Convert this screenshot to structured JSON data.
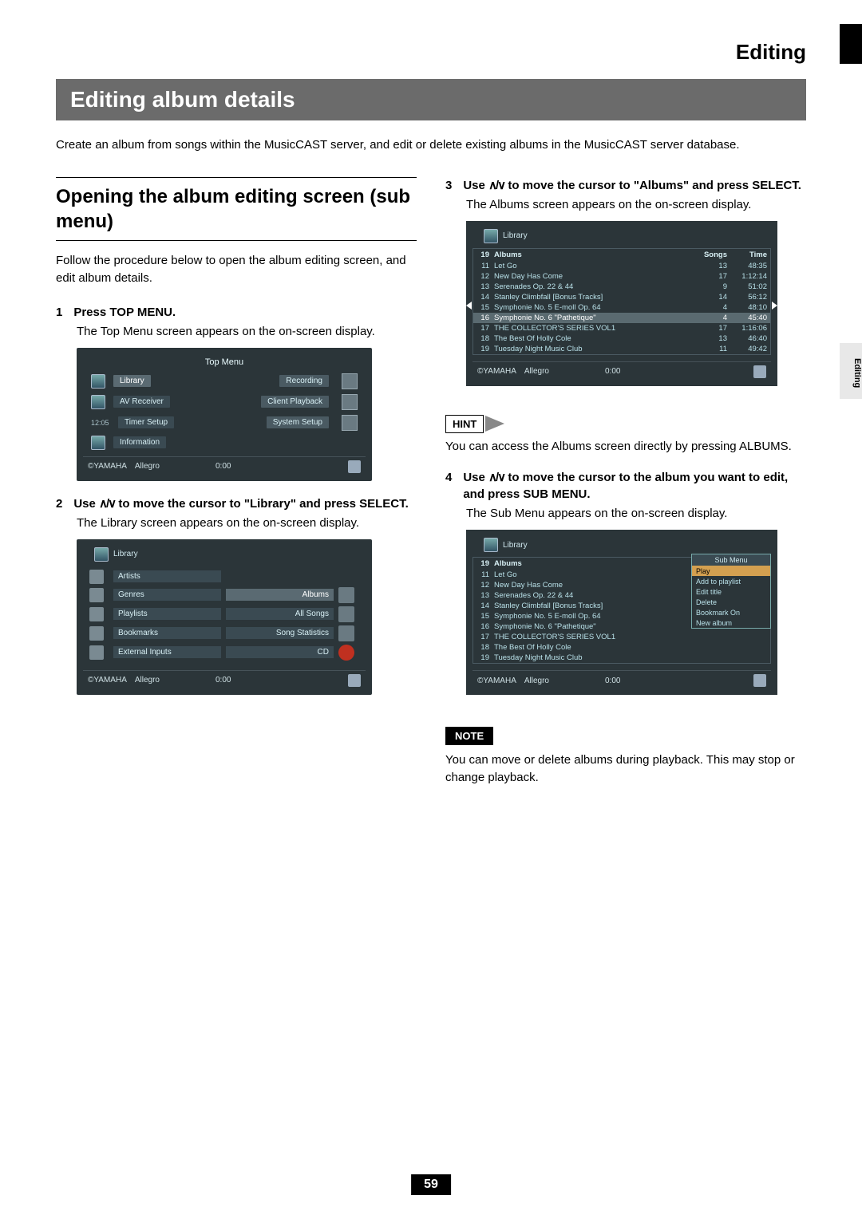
{
  "section_header": "Editing",
  "side_tab": "Editing",
  "title_bar": "Editing album details",
  "intro": "Create an album from songs within the MusicCAST server, and edit or delete existing albums in the MusicCAST server database.",
  "subsection": {
    "title": "Opening the album editing screen (sub menu)",
    "desc": "Follow the procedure below to open the album editing screen, and edit album details."
  },
  "steps": {
    "s1": {
      "num": "1",
      "title": "Press TOP MENU.",
      "body": "The Top Menu screen appears on the on-screen display."
    },
    "s2": {
      "num": "2",
      "title_pre": "Use ",
      "title_post": " to move the cursor to \"Library\" and press SELECT.",
      "body": "The Library screen appears on the on-screen display."
    },
    "s3": {
      "num": "3",
      "title_pre": "Use ",
      "title_post": " to move the cursor to \"Albums\" and press SELECT.",
      "body": "The Albums screen appears on the on-screen display."
    },
    "s4": {
      "num": "4",
      "title_pre": "Use ",
      "title_post": " to move the cursor to the album you want to edit, and press SUB MENU.",
      "body": "The Sub Menu appears on the on-screen display."
    }
  },
  "updown_glyph": "∧/∨",
  "hint": {
    "label": "HINT",
    "text": "You can access the Albums screen directly by pressing ALBUMS."
  },
  "note": {
    "label": "NOTE",
    "text": "You can move or delete albums during playback. This may stop or change playback."
  },
  "page_number": "59",
  "topmenu": {
    "title": "Top Menu",
    "items_left": [
      "Library",
      "AV Receiver",
      "Timer Setup",
      "Information"
    ],
    "items_right": [
      "Recording",
      "Client Playback",
      "System Setup"
    ],
    "time": "12:05",
    "footer_brand": "©YAMAHA",
    "footer_track": "Allegro",
    "footer_time": "0:00"
  },
  "library": {
    "bread": "Library",
    "left": [
      "Artists",
      "Genres",
      "Playlists",
      "Bookmarks",
      "External Inputs"
    ],
    "right": [
      "Albums",
      "All Songs",
      "Song Statistics",
      "CD"
    ],
    "footer_brand": "©YAMAHA",
    "footer_track": "Allegro",
    "footer_time": "0:00"
  },
  "albums": {
    "bread": "Library",
    "count": "19",
    "header": {
      "title": "Albums",
      "songs": "Songs",
      "time": "Time"
    },
    "rows": [
      {
        "n": "11",
        "t": "Let Go",
        "s": "13",
        "d": "48:35"
      },
      {
        "n": "12",
        "t": "New Day Has Come",
        "s": "17",
        "d": "1:12:14"
      },
      {
        "n": "13",
        "t": "Serenades Op. 22 & 44",
        "s": "9",
        "d": "51:02"
      },
      {
        "n": "14",
        "t": "Stanley Climbfall [Bonus Tracks]",
        "s": "14",
        "d": "56:12"
      },
      {
        "n": "15",
        "t": "Symphonie No. 5 E-moll Op. 64",
        "s": "4",
        "d": "48:10"
      },
      {
        "n": "16",
        "t": "Symphonie No. 6 \"Pathetique\"",
        "s": "4",
        "d": "45:40",
        "sel": true
      },
      {
        "n": "17",
        "t": "THE COLLECTOR'S SERIES VOL1",
        "s": "17",
        "d": "1:16:06"
      },
      {
        "n": "18",
        "t": "The Best Of Holly Cole",
        "s": "13",
        "d": "46:40"
      },
      {
        "n": "19",
        "t": "Tuesday Night Music Club",
        "s": "11",
        "d": "49:42"
      }
    ],
    "footer_brand": "©YAMAHA",
    "footer_track": "Allegro",
    "footer_time": "0:00"
  },
  "submenu_screen": {
    "bread": "Library",
    "count": "19",
    "rows": [
      {
        "n": "11",
        "t": "Let Go"
      },
      {
        "n": "12",
        "t": "New Day Has Come"
      },
      {
        "n": "13",
        "t": "Serenades Op. 22 & 44"
      },
      {
        "n": "14",
        "t": "Stanley Climbfall [Bonus Tracks]"
      },
      {
        "n": "15",
        "t": "Symphonie No. 5 E-moll Op. 64"
      },
      {
        "n": "16",
        "t": "Symphonie No. 6 \"Pathetique\""
      },
      {
        "n": "17",
        "t": "THE COLLECTOR'S SERIES VOL1"
      },
      {
        "n": "18",
        "t": "The Best Of Holly Cole"
      },
      {
        "n": "19",
        "t": "Tuesday Night Music Club"
      }
    ],
    "menu_title": "Sub Menu",
    "menu_items": [
      "Play",
      "Add to playlist",
      "Edit title",
      "Delete",
      "Bookmark On",
      "New album"
    ],
    "footer_brand": "©YAMAHA",
    "footer_track": "Allegro",
    "footer_time": "0:00"
  },
  "colors": {
    "title_bar_bg": "#6b6b6b",
    "screenshot_bg": "#2b3539",
    "screenshot_text": "#cfe8ee"
  }
}
